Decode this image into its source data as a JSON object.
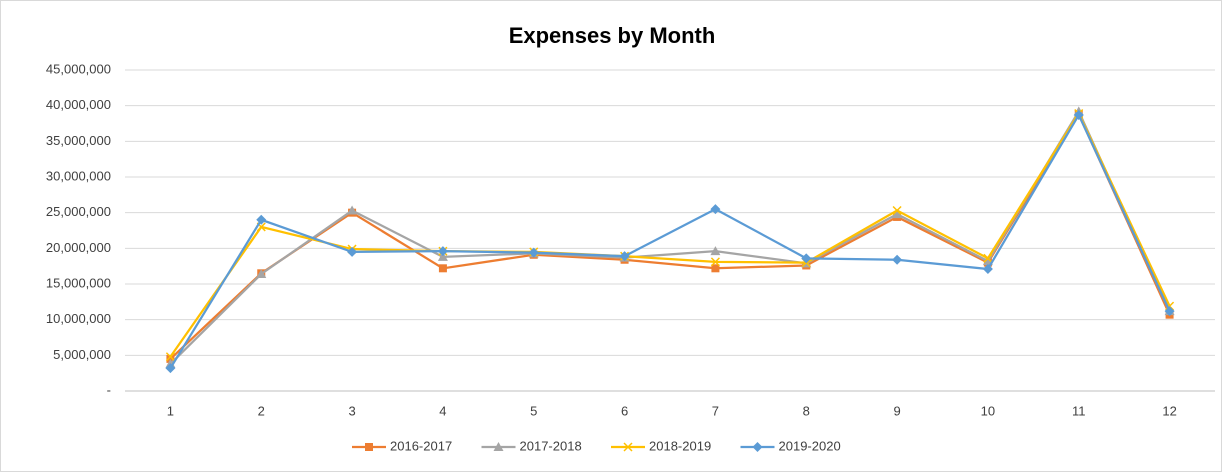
{
  "chart_data": {
    "type": "line",
    "title": "Expenses by Month",
    "categories": [
      "1",
      "2",
      "3",
      "4",
      "5",
      "6",
      "7",
      "8",
      "9",
      "10",
      "11",
      "12"
    ],
    "series": [
      {
        "name": "2016-2017",
        "color": "#ed7d31",
        "marker": "square",
        "values": [
          4500000,
          16500000,
          25000000,
          17200000,
          19100000,
          18400000,
          17200000,
          17600000,
          24400000,
          18000000,
          38800000,
          10700000
        ]
      },
      {
        "name": "2017-2018",
        "color": "#a5a5a5",
        "marker": "triangle",
        "values": [
          3800000,
          16400000,
          25300000,
          18800000,
          19300000,
          18700000,
          19600000,
          17900000,
          24800000,
          18200000,
          39200000,
          11200000
        ]
      },
      {
        "name": "2018-2019",
        "color": "#ffc000",
        "marker": "x",
        "values": [
          4800000,
          23000000,
          19900000,
          19600000,
          19500000,
          18900000,
          18100000,
          18000000,
          25300000,
          18600000,
          38900000,
          11900000
        ]
      },
      {
        "name": "2019-2020",
        "color": "#5b9bd5",
        "marker": "diamond",
        "values": [
          3200000,
          24000000,
          19500000,
          19600000,
          19400000,
          18900000,
          25500000,
          18600000,
          18400000,
          17100000,
          38700000,
          11200000
        ]
      }
    ],
    "ylim": [
      0,
      45000000
    ],
    "yticks": [
      {
        "value": 0,
        "label": "-"
      },
      {
        "value": 5000000,
        "label": "5,000,000"
      },
      {
        "value": 10000000,
        "label": "10,000,000"
      },
      {
        "value": 15000000,
        "label": "15,000,000"
      },
      {
        "value": 20000000,
        "label": "20,000,000"
      },
      {
        "value": 25000000,
        "label": "25,000,000"
      },
      {
        "value": 30000000,
        "label": "30,000,000"
      },
      {
        "value": 35000000,
        "label": "35,000,000"
      },
      {
        "value": 40000000,
        "label": "40,000,000"
      },
      {
        "value": 45000000,
        "label": "45,000,000"
      }
    ],
    "grid": true,
    "legend": "bottom"
  }
}
